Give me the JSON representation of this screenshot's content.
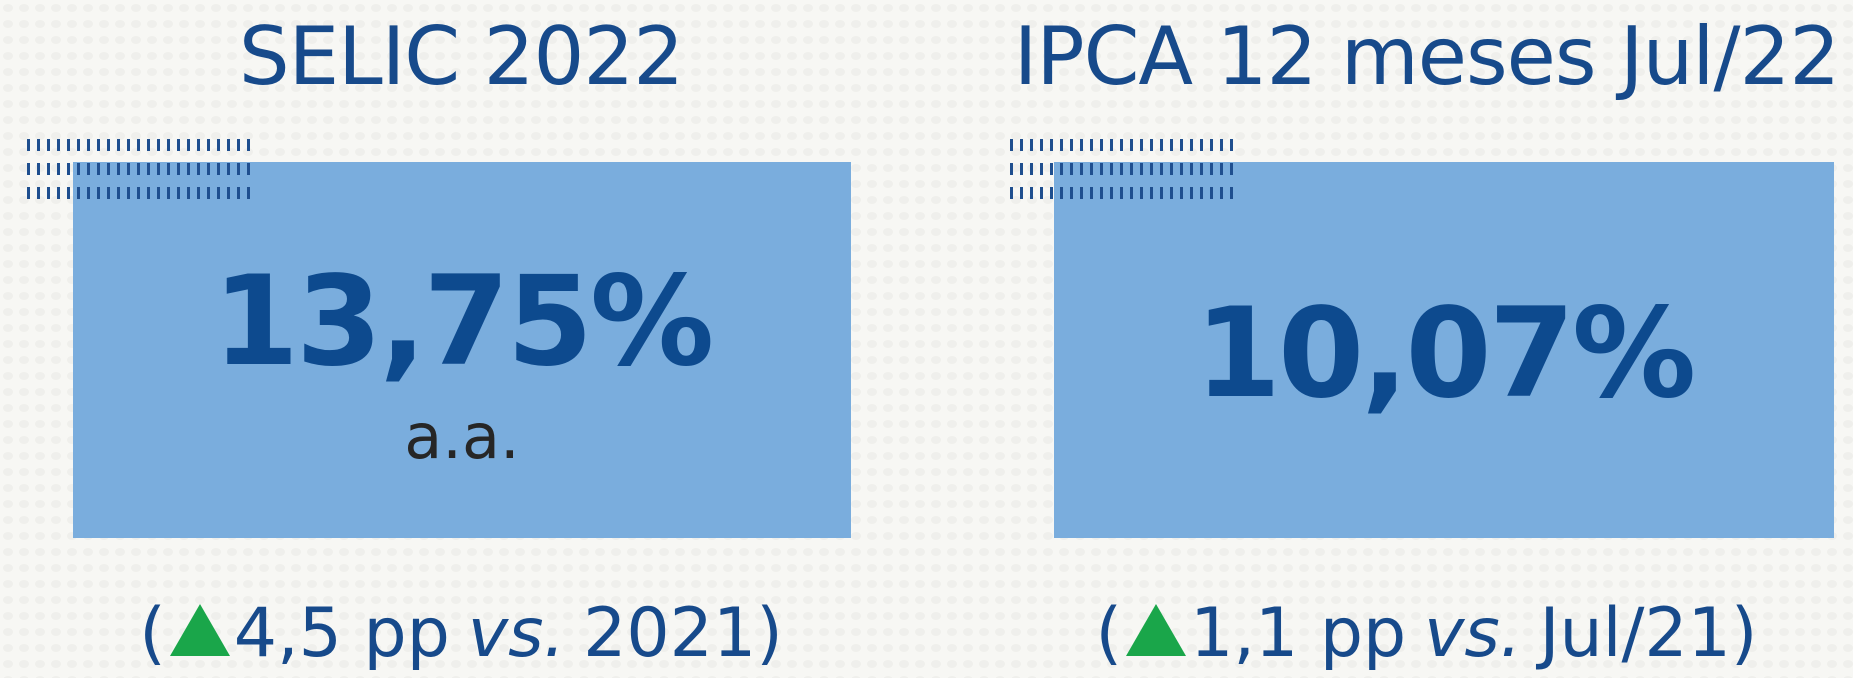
{
  "cards": [
    {
      "title": "SELIC 2022",
      "value": "13,75%",
      "unit": "a.a.",
      "footer": {
        "prefix": "(",
        "change": "4,5 pp",
        "emphasis": "vs.",
        "reference": "2021)"
      }
    },
    {
      "title": "IPCA 12 meses Jul/22",
      "value": "10,07%",
      "footer": {
        "prefix": "(",
        "change": "1,1 pp",
        "emphasis": "vs.",
        "reference": "Jul/21)"
      }
    }
  ]
}
